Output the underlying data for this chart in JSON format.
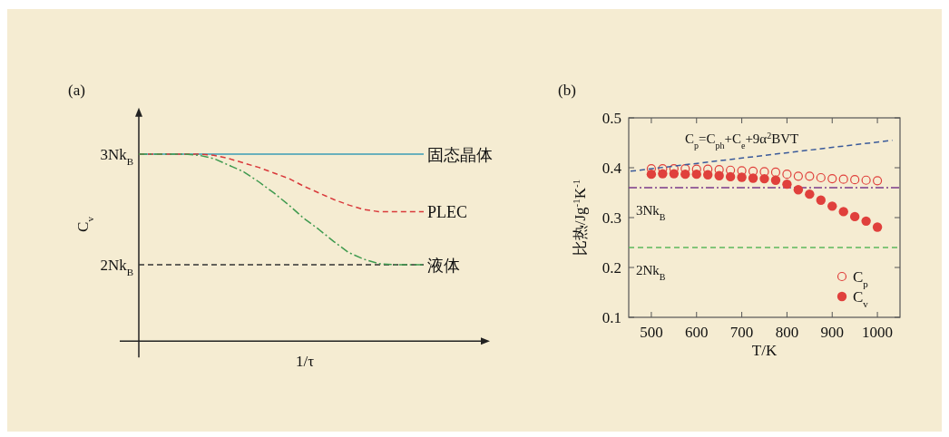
{
  "chart_data": [
    {
      "type": "line",
      "title": "(a)",
      "xlabel": "1/τ",
      "ylabel": "C$_{v}$",
      "categories": [
        null,
        null,
        null,
        null,
        null,
        null,
        null,
        null,
        null,
        null,
        null,
        null,
        null,
        null,
        null,
        null,
        null,
        null,
        null,
        null
      ],
      "ylim": [
        1.31,
        3.42
      ],
      "yticks": [
        {
          "value": 3,
          "label": "3Nk$_{B}$"
        },
        {
          "value": 2,
          "label": "2Nk$_{B}$"
        }
      ],
      "tick_labels": "y",
      "series": [
        {
          "name": "固态晶体",
          "color": "#3a9db5",
          "line_style": "solid",
          "values": [
            3,
            3,
            3,
            3,
            3,
            3,
            3,
            3,
            3,
            3,
            3,
            3,
            3,
            3,
            3,
            3,
            3,
            3,
            3,
            3
          ]
        },
        {
          "name": "PLEC",
          "color": "#d9383a",
          "line_style": "dashed",
          "values": [
            3,
            3,
            3,
            3,
            3.0,
            2.99,
            2.96,
            2.92,
            2.88,
            2.83,
            2.78,
            2.71,
            2.65,
            2.59,
            2.54,
            2.5,
            2.48,
            2.48,
            2.48,
            2.48
          ]
        },
        {
          "name": "液体",
          "color": "#3f9a4f",
          "line_style": "dashdot",
          "values": [
            3,
            3,
            3,
            3,
            2.99,
            2.96,
            2.9,
            2.84,
            2.75,
            2.65,
            2.54,
            2.42,
            2.32,
            2.21,
            2.11,
            2.05,
            2.01,
            2.0,
            2.0,
            2.0
          ]
        }
      ],
      "ref_lines": [
        {
          "axis": "y",
          "value": 2,
          "color": "#333333",
          "line_style": "dashed"
        }
      ]
    },
    {
      "type": "scatter",
      "title": "(b)",
      "xlabel": "T/K",
      "ylabel": "比热/Jg$^{-1}$K$^{-1}$",
      "xlim": [
        450,
        1050
      ],
      "ylim": [
        0.1,
        0.5
      ],
      "xticks": [
        500,
        600,
        700,
        800,
        900,
        1000
      ],
      "yticks": [
        0.1,
        0.2,
        0.3,
        0.4,
        0.5
      ],
      "legend": "bottom right",
      "series": [
        {
          "name": "C$_{p}$",
          "color": "#e0403c",
          "marker": "circle_open",
          "x": [
            500,
            525,
            550,
            575,
            600,
            625,
            650,
            675,
            700,
            725,
            750,
            775,
            800,
            825,
            850,
            875,
            900,
            925,
            950,
            975,
            1000
          ],
          "values": [
            0.398,
            0.398,
            0.398,
            0.398,
            0.397,
            0.397,
            0.396,
            0.395,
            0.394,
            0.393,
            0.392,
            0.391,
            0.387,
            0.383,
            0.383,
            0.38,
            0.378,
            0.377,
            0.376,
            0.375,
            0.374
          ]
        },
        {
          "name": "C$_{v}$",
          "color": "#e0403c",
          "marker": "circle",
          "x": [
            500,
            525,
            550,
            575,
            600,
            625,
            650,
            675,
            700,
            725,
            750,
            775,
            800,
            825,
            850,
            875,
            900,
            925,
            950,
            975,
            1000
          ],
          "values": [
            0.387,
            0.388,
            0.388,
            0.387,
            0.387,
            0.386,
            0.384,
            0.382,
            0.381,
            0.379,
            0.378,
            0.375,
            0.367,
            0.356,
            0.347,
            0.335,
            0.323,
            0.312,
            0.302,
            0.293,
            0.281
          ]
        },
        {
          "type": "line",
          "color": "#3a5a9a",
          "line_style": "dashed",
          "x": [
            454,
            1033
          ],
          "values": [
            0.393,
            0.455
          ]
        }
      ],
      "ref_lines": [
        {
          "axis": "y",
          "value": 0.36,
          "label": "3Nk$_{B}$",
          "color": "#7b3a8a",
          "line_style": "dashdot"
        },
        {
          "axis": "y",
          "value": 0.24,
          "label": "2Nk$_{B}$",
          "color": "#5cb85c",
          "line_style": "dashed"
        }
      ],
      "annotations": [
        "C$_{p}$=C$_{ph}$+C$_{e}$+9α$^{2}$BVT"
      ]
    }
  ]
}
